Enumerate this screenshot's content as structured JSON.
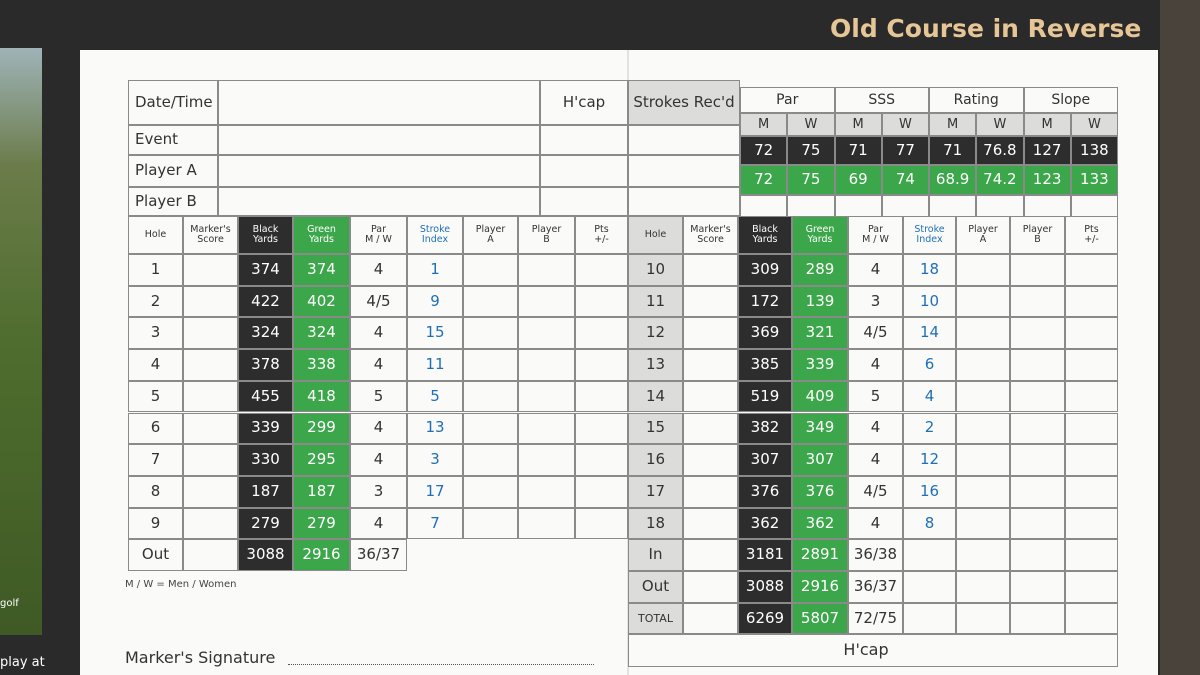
{
  "title": "Old Course in Reverse",
  "side_text": [
    "golf",
    "play at"
  ],
  "details": {
    "labels": [
      "Date/Time",
      "Event",
      "Player A",
      "Player B"
    ],
    "hcap": "H'cap",
    "strokes": "Strokes Rec'd"
  },
  "ratings": {
    "groups": [
      "Par",
      "SSS",
      "Rating",
      "Slope"
    ],
    "sub": [
      "M",
      "W",
      "M",
      "W",
      "M",
      "W",
      "M",
      "W"
    ],
    "black": [
      72,
      75,
      71,
      77,
      71,
      76.8,
      127,
      138
    ],
    "green": [
      72,
      75,
      69,
      74,
      68.9,
      74.2,
      123,
      133
    ]
  },
  "front": {
    "headers": [
      [
        "Hole"
      ],
      [
        "Marker's",
        "Score"
      ],
      [
        "Black",
        "Yards"
      ],
      [
        "Green",
        "Yards"
      ],
      [
        "Par",
        "M / W"
      ],
      [
        "Stroke",
        "Index"
      ],
      [
        "Player",
        "A"
      ],
      [
        "Player",
        "B"
      ],
      [
        "Pts",
        "+/-"
      ]
    ],
    "rows": [
      [
        1,
        374,
        374,
        4,
        1
      ],
      [
        2,
        422,
        402,
        "4/5",
        9
      ],
      [
        3,
        324,
        324,
        4,
        15
      ],
      [
        4,
        378,
        338,
        4,
        11
      ],
      [
        5,
        455,
        418,
        5,
        5
      ],
      [
        6,
        339,
        299,
        4,
        13
      ],
      [
        7,
        330,
        295,
        4,
        3
      ],
      [
        8,
        187,
        187,
        3,
        17
      ],
      [
        9,
        279,
        279,
        4,
        7
      ]
    ],
    "out": [
      "Out",
      3088,
      2916,
      "36/37"
    ]
  },
  "back": {
    "headers": [
      [
        "Hole"
      ],
      [
        "Marker's",
        "Score"
      ],
      [
        "Black",
        "Yards"
      ],
      [
        "Green",
        "Yards"
      ],
      [
        "Par",
        "M / W"
      ],
      [
        "Stroke",
        "Index"
      ],
      [
        "Player",
        "A"
      ],
      [
        "Player",
        "B"
      ],
      [
        "Pts",
        "+/-"
      ]
    ],
    "rows": [
      [
        10,
        309,
        289,
        4,
        18
      ],
      [
        11,
        172,
        139,
        3,
        10
      ],
      [
        12,
        369,
        321,
        "4/5",
        14
      ],
      [
        13,
        385,
        339,
        4,
        6
      ],
      [
        14,
        519,
        409,
        5,
        4
      ],
      [
        15,
        382,
        349,
        4,
        2
      ],
      [
        16,
        307,
        307,
        4,
        12
      ],
      [
        17,
        376,
        376,
        "4/5",
        16
      ],
      [
        18,
        362,
        362,
        4,
        8
      ]
    ],
    "totals": [
      [
        "In",
        3181,
        2891,
        "36/38"
      ],
      [
        "Out",
        3088,
        2916,
        "36/37"
      ],
      [
        "TOTAL",
        6269,
        5807,
        "72/75"
      ]
    ],
    "hcap": "H'cap"
  },
  "note": "M / W = Men / Women",
  "signature": "Marker's Signature"
}
